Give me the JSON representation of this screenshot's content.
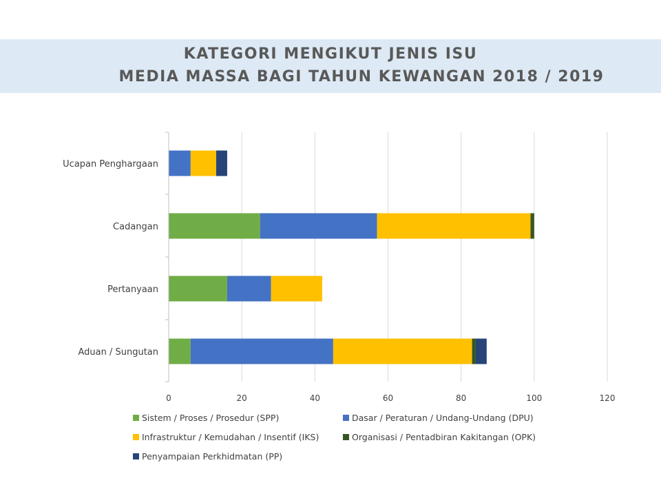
{
  "title": {
    "line1": "KATEGORI MENGIKUT JENIS ISU",
    "line2": "MEDIA MASSA BAGI TAHUN KEWANGAN 2018 / 2019"
  },
  "chart_data": {
    "type": "bar",
    "orientation": "horizontal",
    "stacked": true,
    "categories": [
      "Ucapan Penghargaan",
      "Cadangan",
      "Pertanyaan",
      "Aduan / Sungutan"
    ],
    "series": [
      {
        "name": "Sistem / Proses / Prosedur (SPP)",
        "color": "#70ad47",
        "values": [
          0,
          25,
          16,
          6
        ]
      },
      {
        "name": "Dasar / Peraturan / Undang-Undang (DPU)",
        "color": "#4472c4",
        "values": [
          6,
          32,
          12,
          39
        ]
      },
      {
        "name": "Infrastruktur / Kemudahan / Insentif (IKS)",
        "color": "#ffc000",
        "values": [
          7,
          42,
          14,
          38
        ]
      },
      {
        "name": "Organisasi / Pentadbiran Kakitangan (OPK)",
        "color": "#375623",
        "values": [
          0,
          1,
          0,
          1
        ]
      },
      {
        "name": "Penyampaian Perkhidmatan (PP)",
        "color": "#264478",
        "values": [
          3,
          0,
          0,
          3
        ]
      }
    ],
    "xlim": [
      0,
      120
    ],
    "xticks": [
      0,
      20,
      40,
      60,
      80,
      100,
      120
    ],
    "xtick_labels": [
      "0",
      "20",
      "40",
      "60",
      "80",
      "100",
      "120"
    ],
    "grid": true,
    "legend_position": "bottom"
  }
}
